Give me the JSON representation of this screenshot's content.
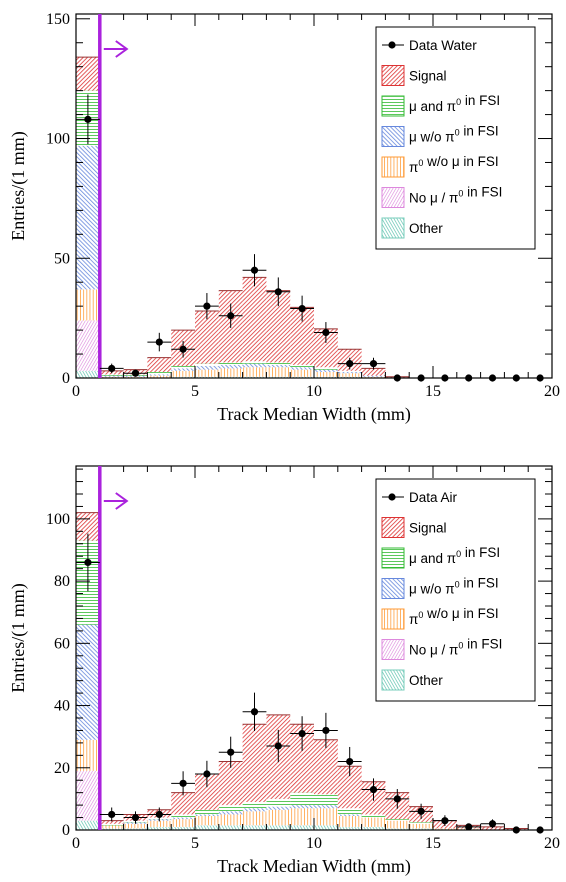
{
  "chart_data": [
    {
      "type": "bar",
      "stacked": true,
      "xlabel": "Track Median Width (mm)",
      "ylabel": "Entries/(1 mm)",
      "xlim": [
        0,
        20
      ],
      "ylim": [
        0,
        152
      ],
      "x_ticks": [
        0,
        5,
        10,
        15,
        20
      ],
      "y_ticks": [
        0,
        50,
        100,
        150
      ],
      "bin_edges": [
        0,
        1,
        2,
        3,
        4,
        5,
        6,
        7,
        8,
        9,
        10,
        11,
        12,
        13,
        14,
        15,
        16,
        17,
        18,
        19,
        20
      ],
      "cut": {
        "x": 1,
        "arrow": "right",
        "color": "#aa22dd"
      },
      "legend_position": "top-right",
      "series": [
        {
          "name": "Other",
          "color": "#77ccbb",
          "values": [
            3,
            0,
            0,
            0,
            0.5,
            0.5,
            0.5,
            0.5,
            0.5,
            0.5,
            0.5,
            0.5,
            0,
            0,
            0,
            0,
            0,
            0,
            0,
            0
          ]
        },
        {
          "name": "No μ / π⁰ in FSI",
          "color": "#dd88dd",
          "values": [
            21,
            0,
            0,
            0,
            0,
            0,
            0,
            0,
            0,
            0,
            0,
            0,
            0,
            0,
            0,
            0,
            0,
            0,
            0,
            0
          ]
        },
        {
          "name": "π⁰ w/o μ in FSI",
          "color": "#ff9933",
          "values": [
            13,
            0.5,
            0.5,
            1,
            2.5,
            3,
            3.5,
            4,
            4,
            3,
            2,
            1.5,
            0.5,
            0,
            0,
            0,
            0,
            0,
            0,
            0
          ]
        },
        {
          "name": "μ w/o π⁰ in FSI",
          "color": "#6688dd",
          "values": [
            60,
            0.5,
            0.5,
            0.5,
            1,
            1.5,
            1.5,
            1.5,
            1,
            1,
            1,
            0.5,
            0.5,
            0,
            0,
            0,
            0,
            0,
            0,
            0
          ]
        },
        {
          "name": "μ and π⁰ in FSI",
          "color": "#33bb33",
          "values": [
            23,
            0.5,
            0.5,
            1,
            1,
            1,
            1,
            1,
            1,
            1,
            1,
            0.5,
            0,
            0,
            0,
            0,
            0,
            0,
            0,
            0
          ]
        },
        {
          "name": "Signal",
          "color": "#dd3333",
          "values": [
            14,
            1.5,
            2,
            6,
            15,
            22,
            30,
            35,
            30,
            24,
            16,
            9,
            3,
            0.5,
            0,
            0,
            0,
            0,
            0,
            0
          ]
        }
      ],
      "data_series": {
        "name": "Data Water",
        "x": [
          0.5,
          1.5,
          2.5,
          3.5,
          4.5,
          5.5,
          6.5,
          7.5,
          8.5,
          9.5,
          10.5,
          11.5,
          12.5,
          13.5,
          14.5,
          15.5,
          16.5,
          17.5,
          18.5,
          19.5
        ],
        "y": [
          108,
          4,
          2,
          15,
          12,
          30,
          26,
          45,
          36,
          29,
          19,
          6,
          6,
          0,
          0,
          0,
          0,
          0,
          0,
          0
        ]
      }
    },
    {
      "type": "bar",
      "stacked": true,
      "xlabel": "Track Median Width (mm)",
      "ylabel": "Entries/(1 mm)",
      "xlim": [
        0,
        20
      ],
      "ylim": [
        0,
        117
      ],
      "x_ticks": [
        0,
        5,
        10,
        15,
        20
      ],
      "y_ticks": [
        0,
        20,
        40,
        60,
        80,
        100
      ],
      "bin_edges": [
        0,
        1,
        2,
        3,
        4,
        5,
        6,
        7,
        8,
        9,
        10,
        11,
        12,
        13,
        14,
        15,
        16,
        17,
        18,
        19,
        20
      ],
      "cut": {
        "x": 1,
        "arrow": "right",
        "color": "#aa22dd"
      },
      "legend_position": "top-right",
      "series": [
        {
          "name": "Other",
          "color": "#77ccbb",
          "values": [
            3,
            0.5,
            0.5,
            1,
            1,
            1.5,
            1.5,
            1.5,
            1.5,
            1.5,
            1.5,
            1,
            1,
            0.5,
            0.5,
            0,
            0,
            0,
            0,
            0
          ]
        },
        {
          "name": "No μ / π⁰ in FSI",
          "color": "#dd88dd",
          "values": [
            16,
            0,
            0,
            0,
            0,
            0,
            0,
            0,
            0,
            0,
            0,
            0,
            0,
            0,
            0,
            0,
            0,
            0,
            0,
            0
          ]
        },
        {
          "name": "π⁰ w/o μ in FSI",
          "color": "#ff9933",
          "values": [
            10,
            1,
            1.5,
            2,
            2.5,
            3,
            3.5,
            4.5,
            5,
            5.5,
            5.5,
            3.5,
            3,
            2.5,
            1.5,
            0.5,
            0.5,
            0,
            0,
            0
          ]
        },
        {
          "name": "μ w/o π⁰ in FSI",
          "color": "#6688dd",
          "values": [
            37,
            0,
            0.5,
            0.5,
            0.5,
            0.5,
            1,
            1,
            1,
            1,
            1,
            0.5,
            0,
            0,
            0,
            0,
            0,
            0,
            0,
            0
          ]
        },
        {
          "name": "μ and π⁰ in FSI",
          "color": "#33bb33",
          "values": [
            27,
            0.5,
            0.5,
            0.5,
            1,
            1.5,
            2,
            2,
            2.5,
            4,
            3.5,
            2,
            1,
            0.5,
            0.5,
            0,
            0,
            0,
            0,
            0
          ]
        },
        {
          "name": "Signal",
          "color": "#dd3333",
          "values": [
            9,
            1,
            2,
            2.5,
            7,
            11.5,
            14,
            25,
            27,
            22,
            17.5,
            13.5,
            10.5,
            8.5,
            5,
            2.5,
            1,
            1,
            0.5,
            0
          ]
        }
      ],
      "data_series": {
        "name": "Data Air",
        "x": [
          0.5,
          1.5,
          2.5,
          3.5,
          4.5,
          5.5,
          6.5,
          7.5,
          8.5,
          9.5,
          10.5,
          11.5,
          12.5,
          13.5,
          14.5,
          15.5,
          16.5,
          17.5,
          18.5,
          19.5
        ],
        "y": [
          86,
          5,
          4,
          5,
          15,
          18,
          25,
          38,
          27,
          31,
          32,
          22,
          13,
          10,
          6,
          3,
          1,
          2,
          0,
          0
        ]
      }
    }
  ]
}
